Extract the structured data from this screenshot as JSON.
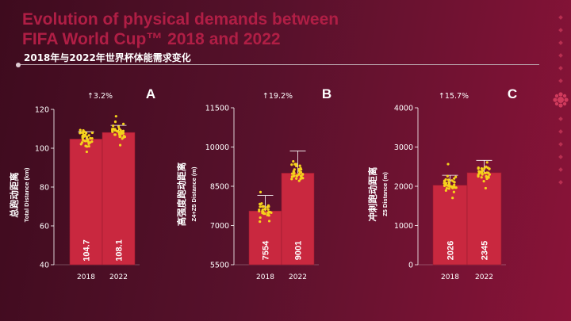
{
  "title_en_line1": "Evolution of physical demands between",
  "title_en_line2": "FIFA World Cup™ 2018 and 2022",
  "title_cn": "2018年与2022年世界杯体能需求变化",
  "colors": {
    "bar": "#c9283f",
    "bar_edge": "#9a1a30",
    "dot": "#f5d21c",
    "text": "#ffffff",
    "title_en": "#b01e45",
    "axis": "#ffffff"
  },
  "chart_data": [
    {
      "type": "bar",
      "panel_letter": "A",
      "change_label": "↑3.2%",
      "ylabel_cn": "总跑动距离",
      "ylabel_en": "Total Distance (km)",
      "categories": [
        "2018",
        "2022"
      ],
      "values": [
        104.7,
        108.1
      ],
      "value_labels": [
        "104.7",
        "108.1"
      ],
      "error_top": [
        108.5,
        111.8
      ],
      "ylim": [
        40,
        120
      ],
      "yticks": [
        40,
        60,
        80,
        100,
        120
      ],
      "ytick_labels": [
        "40",
        "60",
        "80",
        "100",
        "120"
      ]
    },
    {
      "type": "bar",
      "panel_letter": "B",
      "change_label": "↑19.2%",
      "ylabel_cn": "高强度跑动距离",
      "ylabel_en": "Z4+Z5 Distance (m)",
      "categories": [
        "2018",
        "2022"
      ],
      "values": [
        7554,
        9001
      ],
      "value_labels": [
        "7554",
        "9001"
      ],
      "error_top": [
        8150,
        9850
      ],
      "ylim": [
        5500,
        11500
      ],
      "yticks": [
        5500,
        7000,
        8500,
        10000,
        11500
      ],
      "ytick_labels": [
        "5500",
        "7000",
        "8500",
        "10000",
        "11500"
      ]
    },
    {
      "type": "bar",
      "panel_letter": "C",
      "change_label": "↑15.7%",
      "ylabel_cn": "冲刺跑动距离",
      "ylabel_en": "Z5 Distance (m)",
      "categories": [
        "2018",
        "2022"
      ],
      "values": [
        2026,
        2345
      ],
      "value_labels": [
        "2026",
        "2345"
      ],
      "error_top": [
        2280,
        2660
      ],
      "ylim": [
        0,
        4000
      ],
      "yticks": [
        0,
        1000,
        2000,
        3000,
        4000
      ],
      "ytick_labels": [
        "0",
        "1000",
        "2000",
        "3000",
        "4000"
      ]
    }
  ]
}
